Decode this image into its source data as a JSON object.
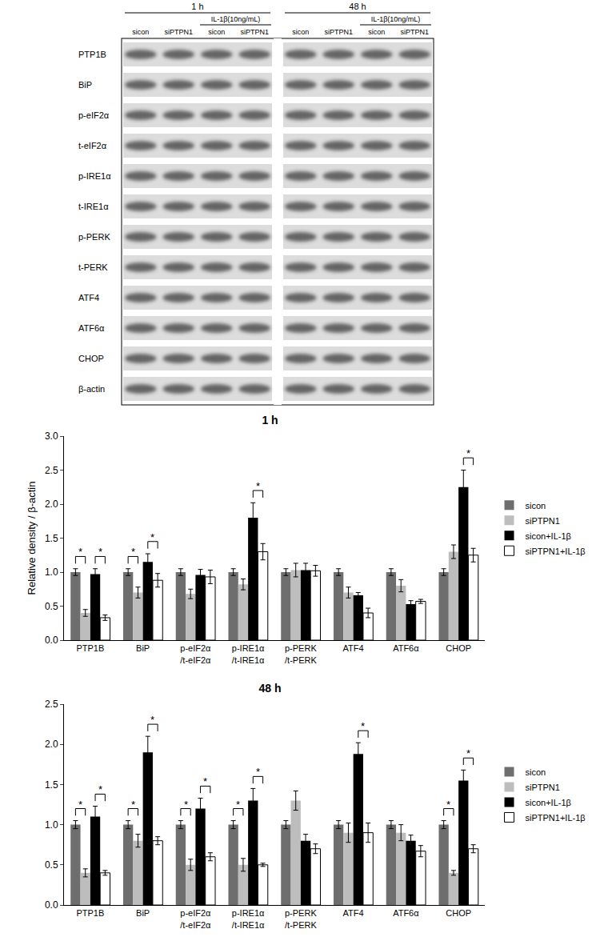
{
  "blot": {
    "groups": [
      {
        "label": "1 h",
        "treatment": "IL-1β(10ng/mL)",
        "treatment_lanes": [
          2,
          3
        ],
        "lanes": [
          "sicon",
          "siPTPN1",
          "sicon",
          "siPTPN1"
        ]
      },
      {
        "label": "48 h",
        "treatment": "IL-1β(10ng/mL)",
        "treatment_lanes": [
          2,
          3
        ],
        "lanes": [
          "sicon",
          "siPTPN1",
          "sicon",
          "siPTPN1"
        ]
      }
    ],
    "rows": [
      "PTP1B",
      "BiP",
      "p-eIF2α",
      "t-eIF2α",
      "p-IRE1α",
      "t-IRE1α",
      "p-PERK",
      "t-PERK",
      "ATF4",
      "ATF6α",
      "CHOP",
      "β-actin"
    ]
  },
  "chart_data": [
    {
      "type": "bar",
      "title": "1 h",
      "y_label": "Relative density / β-actin",
      "categories": [
        "PTP1B",
        "BiP",
        "p-eIF2α\n/t-eIF2α",
        "p-IRE1α\n/t-IRE1α",
        "p-PERK\n/t-PERK",
        "ATF4",
        "ATF6α",
        "CHOP"
      ],
      "series": [
        {
          "name": "sicon",
          "color": "#6e6e6e",
          "values": [
            1.0,
            1.0,
            1.0,
            1.0,
            1.0,
            1.0,
            1.0,
            1.0
          ],
          "errors": [
            0.05,
            0.05,
            0.05,
            0.05,
            0.05,
            0.05,
            0.05,
            0.05
          ]
        },
        {
          "name": "siPTPN1",
          "color": "#bdbdbd",
          "values": [
            0.4,
            0.7,
            0.68,
            0.82,
            1.03,
            0.7,
            0.8,
            1.3
          ],
          "errors": [
            0.05,
            0.08,
            0.07,
            0.08,
            0.1,
            0.08,
            0.09,
            0.1
          ]
        },
        {
          "name": "sicon+IL-1β",
          "color": "#000000",
          "values": [
            0.97,
            1.15,
            0.96,
            1.8,
            1.03,
            0.66,
            0.53,
            2.25
          ],
          "errors": [
            0.08,
            0.12,
            0.08,
            0.22,
            0.1,
            0.04,
            0.05,
            0.25
          ]
        },
        {
          "name": "siPTPN1+IL-1β",
          "color": "#ffffff",
          "values": [
            0.33,
            0.88,
            0.93,
            1.3,
            1.02,
            0.4,
            0.57,
            1.25
          ],
          "errors": [
            0.04,
            0.1,
            0.1,
            0.12,
            0.08,
            0.07,
            0.03,
            0.1
          ]
        }
      ],
      "ylim": [
        0,
        3.0
      ],
      "yticks": [
        {
          "value": 0,
          "label": "0.0"
        },
        {
          "value": 0.5,
          "label": "0.5"
        },
        {
          "value": 1,
          "label": "1.0"
        },
        {
          "value": 1.5,
          "label": "1.5"
        },
        {
          "value": 2,
          "label": "2.0"
        },
        {
          "value": 2.5,
          "label": "2.5"
        },
        {
          "value": 3,
          "label": "3.0"
        }
      ],
      "legend": "right",
      "significance": [
        {
          "category": 0,
          "pair": [
            0,
            1
          ],
          "label": "*"
        },
        {
          "category": 0,
          "pair": [
            2,
            3
          ],
          "label": "*"
        },
        {
          "category": 1,
          "pair": [
            0,
            1
          ],
          "label": "*"
        },
        {
          "category": 1,
          "pair": [
            2,
            3
          ],
          "label": "*"
        },
        {
          "category": 3,
          "pair": [
            2,
            3
          ],
          "label": "*"
        },
        {
          "category": 7,
          "pair": [
            2,
            3
          ],
          "label": "*"
        }
      ]
    },
    {
      "type": "bar",
      "title": "48 h",
      "categories": [
        "PTP1B",
        "BiP",
        "p-eIF2α\n/t-eIF2α",
        "p-IRE1α\n/t-IRE1α",
        "p-PERK\n/t-PERK",
        "ATF4",
        "ATF6α",
        "CHOP"
      ],
      "series": [
        {
          "name": "sicon",
          "color": "#6e6e6e",
          "values": [
            1.0,
            1.0,
            1.0,
            1.0,
            1.0,
            1.0,
            1.0,
            1.0
          ],
          "errors": [
            0.05,
            0.05,
            0.05,
            0.05,
            0.05,
            0.05,
            0.05,
            0.05
          ]
        },
        {
          "name": "siPTPN1",
          "color": "#bdbdbd",
          "values": [
            0.4,
            0.8,
            0.5,
            0.5,
            1.3,
            0.9,
            0.9,
            0.4
          ],
          "errors": [
            0.05,
            0.08,
            0.07,
            0.08,
            0.12,
            0.12,
            0.1,
            0.03
          ]
        },
        {
          "name": "sicon+IL-1β",
          "color": "#000000",
          "values": [
            1.1,
            1.9,
            1.2,
            1.3,
            0.8,
            1.88,
            0.8,
            1.55
          ],
          "errors": [
            0.13,
            0.2,
            0.13,
            0.15,
            0.08,
            0.14,
            0.07,
            0.13
          ]
        },
        {
          "name": "siPTPN1+IL-1β",
          "color": "#ffffff",
          "values": [
            0.4,
            0.8,
            0.6,
            0.5,
            0.7,
            0.9,
            0.67,
            0.7
          ],
          "errors": [
            0.03,
            0.05,
            0.05,
            0.02,
            0.06,
            0.12,
            0.07,
            0.05
          ]
        }
      ],
      "ylim": [
        0,
        2.5
      ],
      "yticks": [
        {
          "value": 0,
          "label": "0.0"
        },
        {
          "value": 0.5,
          "label": "0.5"
        },
        {
          "value": 1,
          "label": "1.0"
        },
        {
          "value": 1.5,
          "label": "1.5"
        },
        {
          "value": 2,
          "label": "2.0"
        },
        {
          "value": 2.5,
          "label": "2.5"
        }
      ],
      "legend": "right",
      "significance": [
        {
          "category": 0,
          "pair": [
            0,
            1
          ],
          "label": "*"
        },
        {
          "category": 0,
          "pair": [
            2,
            3
          ],
          "label": "*"
        },
        {
          "category": 1,
          "pair": [
            0,
            1
          ],
          "label": "*"
        },
        {
          "category": 1,
          "pair": [
            2,
            3
          ],
          "label": "*"
        },
        {
          "category": 2,
          "pair": [
            0,
            1
          ],
          "label": "*"
        },
        {
          "category": 2,
          "pair": [
            2,
            3
          ],
          "label": "*"
        },
        {
          "category": 3,
          "pair": [
            0,
            1
          ],
          "label": "*"
        },
        {
          "category": 3,
          "pair": [
            2,
            3
          ],
          "label": "*"
        },
        {
          "category": 5,
          "pair": [
            2,
            3
          ],
          "label": "*"
        },
        {
          "category": 7,
          "pair": [
            0,
            1
          ],
          "label": "*"
        },
        {
          "category": 7,
          "pair": [
            2,
            3
          ],
          "label": "*"
        }
      ]
    }
  ]
}
